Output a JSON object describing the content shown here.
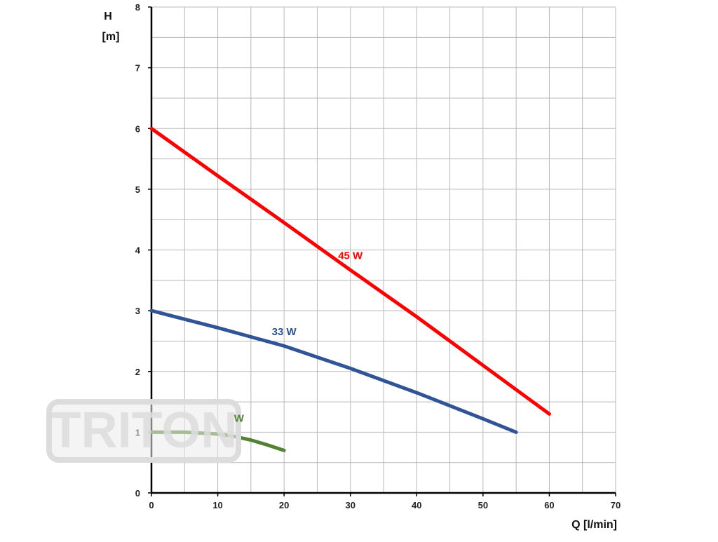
{
  "chart_data": {
    "type": "line",
    "xlabel": "Q [l/min]",
    "ylabel_line1": "H",
    "ylabel_line2": "[m]",
    "xlim": [
      0,
      70
    ],
    "ylim": [
      0,
      8
    ],
    "x_ticks": [
      0,
      10,
      20,
      30,
      40,
      50,
      60,
      70
    ],
    "y_ticks": [
      0,
      1,
      2,
      3,
      4,
      5,
      6,
      7,
      8
    ],
    "x_minor_step": 5,
    "y_minor_step": 0.5,
    "grid": true,
    "series": [
      {
        "name": "45 W",
        "color": "#ff0000",
        "x": [
          0,
          10,
          20,
          30,
          40,
          50,
          60
        ],
        "y": [
          6.0,
          5.22,
          4.45,
          3.67,
          2.9,
          2.1,
          1.3
        ]
      },
      {
        "name": "33 W",
        "color": "#2f5597",
        "x": [
          0,
          10,
          20,
          30,
          40,
          50,
          55
        ],
        "y": [
          3.0,
          2.72,
          2.42,
          2.05,
          1.65,
          1.22,
          1.0
        ]
      },
      {
        "name": "W",
        "color": "#548235",
        "x": [
          0,
          5,
          10,
          12.5,
          15,
          17.5,
          20
        ],
        "y": [
          1.0,
          1.0,
          0.97,
          0.93,
          0.87,
          0.79,
          0.7
        ]
      }
    ],
    "series_labels": [
      {
        "text": "45 W",
        "color": "#ff0000",
        "at": [
          30,
          3.85
        ]
      },
      {
        "text": "33 W",
        "color": "#2f5597",
        "at": [
          20,
          2.6
        ]
      },
      {
        "text": "W",
        "color": "#548235",
        "at": [
          13.2,
          1.17
        ]
      }
    ]
  },
  "watermark": {
    "text": "TRITON",
    "color": "#dcdcdc"
  }
}
